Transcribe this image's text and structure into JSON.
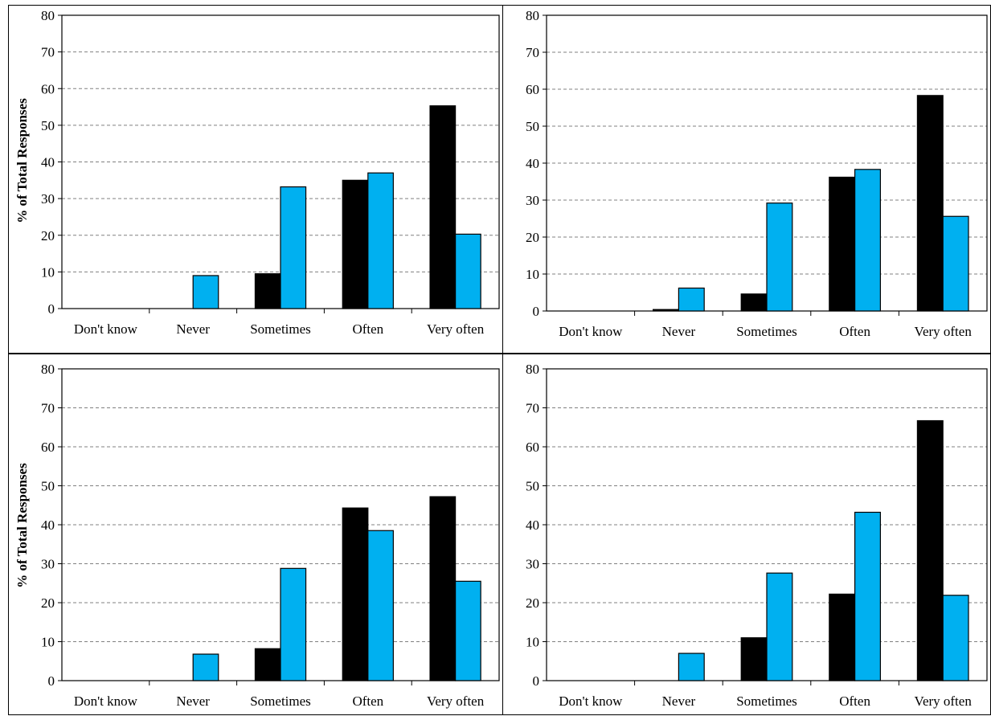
{
  "colors": {
    "series_a": "#000000",
    "series_b": "#00b0f0",
    "grid": "#808080"
  },
  "chart_data": [
    {
      "type": "bar",
      "ylabel": "% of Total Responses",
      "ylim": [
        0,
        80
      ],
      "yticks": [
        0,
        10,
        20,
        30,
        40,
        50,
        60,
        70,
        80
      ],
      "grid": true,
      "categories": [
        "Don't know",
        "Never",
        "Sometimes",
        "Often",
        "Very often"
      ],
      "series": [
        {
          "values": [
            0,
            0,
            9.5,
            35,
            55.3
          ]
        },
        {
          "values": [
            0,
            9,
            33.2,
            37,
            20.3
          ]
        }
      ]
    },
    {
      "type": "bar",
      "ylabel": "",
      "ylim": [
        0,
        80
      ],
      "yticks": [
        0,
        10,
        20,
        30,
        40,
        50,
        60,
        70,
        80
      ],
      "grid": true,
      "categories": [
        "Don't know",
        "Never",
        "Sometimes",
        "Often",
        "Very often"
      ],
      "series": [
        {
          "values": [
            0,
            0.4,
            4.6,
            36.2,
            58.3
          ]
        },
        {
          "values": [
            0,
            6.2,
            29.2,
            38.3,
            25.6
          ]
        }
      ]
    },
    {
      "type": "bar",
      "ylabel": "% of Total Responses",
      "ylim": [
        0,
        80
      ],
      "yticks": [
        0,
        10,
        20,
        30,
        40,
        50,
        60,
        70,
        80
      ],
      "grid": true,
      "categories": [
        "Don't know",
        "Never",
        "Sometimes",
        "Often",
        "Very often"
      ],
      "series": [
        {
          "values": [
            0,
            0,
            8.2,
            44.3,
            47.2
          ]
        },
        {
          "values": [
            0,
            6.8,
            28.8,
            38.5,
            25.5
          ]
        }
      ]
    },
    {
      "type": "bar",
      "ylabel": "",
      "ylim": [
        0,
        80
      ],
      "yticks": [
        0,
        10,
        20,
        30,
        40,
        50,
        60,
        70,
        80
      ],
      "grid": true,
      "categories": [
        "Don't know",
        "Never",
        "Sometimes",
        "Often",
        "Very often"
      ],
      "series": [
        {
          "values": [
            0,
            0,
            11,
            22.2,
            66.7
          ]
        },
        {
          "values": [
            0,
            7,
            27.6,
            43.2,
            21.9
          ]
        }
      ]
    }
  ]
}
